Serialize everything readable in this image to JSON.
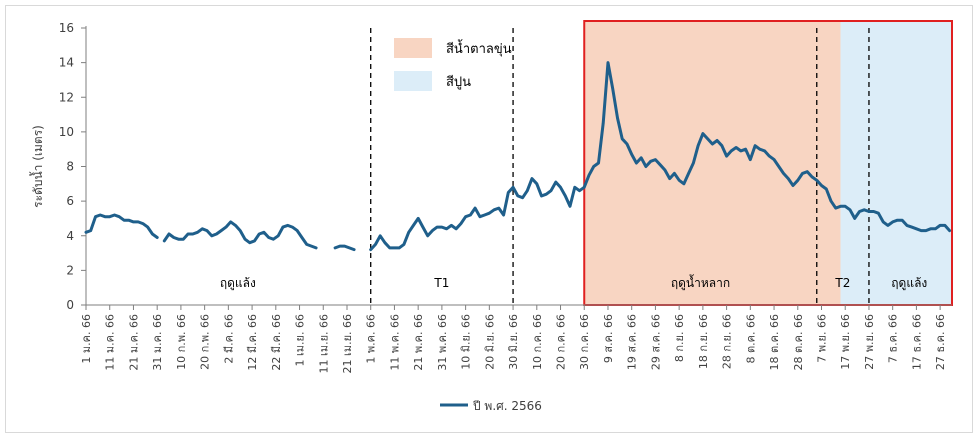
{
  "chart_data": {
    "type": "line",
    "ylabel": "ระดับน้ำ (เมตร)",
    "ylim": [
      0,
      16
    ],
    "yticks": [
      0,
      2,
      4,
      6,
      8,
      10,
      12,
      14,
      16
    ],
    "xlim": [
      "2023-01-01",
      "2024-01-01"
    ],
    "xticks": [
      {
        "date": "2023-01-01",
        "label": "1 ม.ค. 66"
      },
      {
        "date": "2023-01-11",
        "label": "11 ม.ค. 66"
      },
      {
        "date": "2023-01-21",
        "label": "21 ม.ค. 66"
      },
      {
        "date": "2023-01-31",
        "label": "31 ม.ค. 66"
      },
      {
        "date": "2023-02-10",
        "label": "10 ก.พ. 66"
      },
      {
        "date": "2023-02-20",
        "label": "20 ก.พ. 66"
      },
      {
        "date": "2023-03-02",
        "label": "2 มี.ค. 66"
      },
      {
        "date": "2023-03-12",
        "label": "12 มี.ค. 66"
      },
      {
        "date": "2023-03-22",
        "label": "22 มี.ค. 66"
      },
      {
        "date": "2023-04-01",
        "label": "1 เม.ย. 66"
      },
      {
        "date": "2023-04-11",
        "label": "11 เม.ย. 66"
      },
      {
        "date": "2023-04-21",
        "label": "21 เม.ย. 66"
      },
      {
        "date": "2023-05-01",
        "label": "1 พ.ค. 66"
      },
      {
        "date": "2023-05-11",
        "label": "11 พ.ค. 66"
      },
      {
        "date": "2023-05-21",
        "label": "21 พ.ค. 66"
      },
      {
        "date": "2023-05-31",
        "label": "31 พ.ค. 66"
      },
      {
        "date": "2023-06-10",
        "label": "10 มิ.ย. 66"
      },
      {
        "date": "2023-06-20",
        "label": "20 มิ.ย. 66"
      },
      {
        "date": "2023-06-30",
        "label": "30 มิ.ย. 66"
      },
      {
        "date": "2023-07-10",
        "label": "10 ก.ค. 66"
      },
      {
        "date": "2023-07-20",
        "label": "20 ก.ค. 66"
      },
      {
        "date": "2023-07-30",
        "label": "30 ก.ค. 66"
      },
      {
        "date": "2023-08-09",
        "label": "9 ส.ค. 66"
      },
      {
        "date": "2023-08-19",
        "label": "19 ส.ค. 66"
      },
      {
        "date": "2023-08-29",
        "label": "29 ส.ค. 66"
      },
      {
        "date": "2023-09-08",
        "label": "8 ก.ย. 66"
      },
      {
        "date": "2023-09-18",
        "label": "18 ก.ย. 66"
      },
      {
        "date": "2023-09-28",
        "label": "28 ก.ย. 66"
      },
      {
        "date": "2023-10-08",
        "label": "8 ต.ค. 66"
      },
      {
        "date": "2023-10-18",
        "label": "18 ต.ค. 66"
      },
      {
        "date": "2023-10-28",
        "label": "28 ต.ค. 66"
      },
      {
        "date": "2023-11-07",
        "label": "7 พ.ย. 66"
      },
      {
        "date": "2023-11-17",
        "label": "17 พ.ย. 66"
      },
      {
        "date": "2023-11-27",
        "label": "27 พ.ย. 66"
      },
      {
        "date": "2023-12-07",
        "label": "7 ธ.ค. 66"
      },
      {
        "date": "2023-12-17",
        "label": "17 ธ.ค. 66"
      },
      {
        "date": "2023-12-27",
        "label": "27 ธ.ค. 66"
      }
    ],
    "series": [
      {
        "name": "ปี พ.ศ. 2566",
        "color": "#1f5f8b",
        "segments": [
          [
            [
              "2023-01-01",
              4.2
            ],
            [
              "2023-01-03",
              4.3
            ],
            [
              "2023-01-05",
              5.1
            ],
            [
              "2023-01-07",
              5.2
            ],
            [
              "2023-01-09",
              5.1
            ],
            [
              "2023-01-11",
              5.1
            ],
            [
              "2023-01-13",
              5.2
            ],
            [
              "2023-01-15",
              5.1
            ],
            [
              "2023-01-17",
              4.9
            ],
            [
              "2023-01-19",
              4.9
            ],
            [
              "2023-01-21",
              4.8
            ],
            [
              "2023-01-23",
              4.8
            ],
            [
              "2023-01-25",
              4.7
            ],
            [
              "2023-01-27",
              4.5
            ],
            [
              "2023-01-29",
              4.1
            ],
            [
              "2023-01-31",
              3.9
            ]
          ],
          [
            [
              "2023-02-03",
              3.7
            ],
            [
              "2023-02-05",
              4.1
            ],
            [
              "2023-02-07",
              3.9
            ],
            [
              "2023-02-09",
              3.8
            ],
            [
              "2023-02-11",
              3.8
            ],
            [
              "2023-02-13",
              4.1
            ],
            [
              "2023-02-15",
              4.1
            ],
            [
              "2023-02-17",
              4.2
            ],
            [
              "2023-02-19",
              4.4
            ],
            [
              "2023-02-21",
              4.3
            ],
            [
              "2023-02-23",
              4.0
            ],
            [
              "2023-02-25",
              4.1
            ],
            [
              "2023-02-27",
              4.3
            ],
            [
              "2023-03-01",
              4.5
            ],
            [
              "2023-03-03",
              4.8
            ],
            [
              "2023-03-05",
              4.6
            ],
            [
              "2023-03-07",
              4.3
            ],
            [
              "2023-03-09",
              3.8
            ],
            [
              "2023-03-11",
              3.6
            ],
            [
              "2023-03-13",
              3.7
            ],
            [
              "2023-03-15",
              4.1
            ],
            [
              "2023-03-17",
              4.2
            ],
            [
              "2023-03-19",
              3.9
            ],
            [
              "2023-03-21",
              3.8
            ],
            [
              "2023-03-23",
              4.0
            ],
            [
              "2023-03-25",
              4.5
            ],
            [
              "2023-03-27",
              4.6
            ],
            [
              "2023-03-29",
              4.5
            ],
            [
              "2023-03-31",
              4.3
            ],
            [
              "2023-04-02",
              3.9
            ],
            [
              "2023-04-04",
              3.5
            ],
            [
              "2023-04-06",
              3.4
            ],
            [
              "2023-04-08",
              3.3
            ]
          ],
          [
            [
              "2023-04-16",
              3.3
            ],
            [
              "2023-04-18",
              3.4
            ],
            [
              "2023-04-20",
              3.4
            ],
            [
              "2023-04-22",
              3.3
            ],
            [
              "2023-04-24",
              3.2
            ]
          ],
          [
            [
              "2023-05-01",
              3.2
            ],
            [
              "2023-05-03",
              3.5
            ],
            [
              "2023-05-05",
              4.0
            ],
            [
              "2023-05-07",
              3.6
            ],
            [
              "2023-05-09",
              3.3
            ],
            [
              "2023-05-11",
              3.3
            ],
            [
              "2023-05-13",
              3.3
            ],
            [
              "2023-05-15",
              3.5
            ],
            [
              "2023-05-17",
              4.2
            ],
            [
              "2023-05-19",
              4.6
            ],
            [
              "2023-05-21",
              5.0
            ],
            [
              "2023-05-23",
              4.5
            ],
            [
              "2023-05-25",
              4.0
            ],
            [
              "2023-05-27",
              4.3
            ],
            [
              "2023-05-29",
              4.5
            ],
            [
              "2023-05-31",
              4.5
            ],
            [
              "2023-06-02",
              4.4
            ],
            [
              "2023-06-04",
              4.6
            ],
            [
              "2023-06-06",
              4.4
            ],
            [
              "2023-06-08",
              4.7
            ],
            [
              "2023-06-10",
              5.1
            ],
            [
              "2023-06-12",
              5.2
            ],
            [
              "2023-06-14",
              5.6
            ],
            [
              "2023-06-16",
              5.1
            ],
            [
              "2023-06-18",
              5.2
            ],
            [
              "2023-06-20",
              5.3
            ],
            [
              "2023-06-22",
              5.5
            ],
            [
              "2023-06-24",
              5.6
            ],
            [
              "2023-06-26",
              5.2
            ],
            [
              "2023-06-28",
              6.5
            ],
            [
              "2023-06-30",
              6.8
            ],
            [
              "2023-07-02",
              6.3
            ],
            [
              "2023-07-04",
              6.2
            ],
            [
              "2023-07-06",
              6.6
            ],
            [
              "2023-07-08",
              7.3
            ],
            [
              "2023-07-10",
              7.0
            ],
            [
              "2023-07-12",
              6.3
            ],
            [
              "2023-07-14",
              6.4
            ],
            [
              "2023-07-16",
              6.6
            ],
            [
              "2023-07-18",
              7.1
            ],
            [
              "2023-07-20",
              6.8
            ],
            [
              "2023-07-22",
              6.3
            ],
            [
              "2023-07-24",
              5.7
            ],
            [
              "2023-07-26",
              6.8
            ],
            [
              "2023-07-28",
              6.6
            ],
            [
              "2023-07-30",
              6.8
            ],
            [
              "2023-08-01",
              7.5
            ],
            [
              "2023-08-03",
              8.0
            ],
            [
              "2023-08-05",
              8.2
            ],
            [
              "2023-08-07",
              10.5
            ],
            [
              "2023-08-09",
              14.0
            ],
            [
              "2023-08-11",
              12.5
            ],
            [
              "2023-08-13",
              10.8
            ],
            [
              "2023-08-15",
              9.6
            ],
            [
              "2023-08-17",
              9.3
            ],
            [
              "2023-08-19",
              8.7
            ],
            [
              "2023-08-21",
              8.2
            ],
            [
              "2023-08-23",
              8.5
            ],
            [
              "2023-08-25",
              8.0
            ],
            [
              "2023-08-27",
              8.3
            ],
            [
              "2023-08-29",
              8.4
            ],
            [
              "2023-08-31",
              8.1
            ],
            [
              "2023-09-02",
              7.8
            ],
            [
              "2023-09-04",
              7.3
            ],
            [
              "2023-09-06",
              7.6
            ],
            [
              "2023-09-08",
              7.2
            ],
            [
              "2023-09-10",
              7.0
            ],
            [
              "2023-09-12",
              7.6
            ],
            [
              "2023-09-14",
              8.2
            ],
            [
              "2023-09-16",
              9.2
            ],
            [
              "2023-09-18",
              9.9
            ],
            [
              "2023-09-20",
              9.6
            ],
            [
              "2023-09-22",
              9.3
            ],
            [
              "2023-09-24",
              9.5
            ],
            [
              "2023-09-26",
              9.2
            ],
            [
              "2023-09-28",
              8.6
            ],
            [
              "2023-09-30",
              8.9
            ],
            [
              "2023-10-02",
              9.1
            ],
            [
              "2023-10-04",
              8.9
            ],
            [
              "2023-10-06",
              9.0
            ],
            [
              "2023-10-08",
              8.4
            ],
            [
              "2023-10-10",
              9.2
            ],
            [
              "2023-10-12",
              9.0
            ],
            [
              "2023-10-14",
              8.9
            ],
            [
              "2023-10-16",
              8.6
            ],
            [
              "2023-10-18",
              8.4
            ],
            [
              "2023-10-20",
              8.0
            ],
            [
              "2023-10-22",
              7.6
            ],
            [
              "2023-10-24",
              7.3
            ],
            [
              "2023-10-26",
              6.9
            ],
            [
              "2023-10-28",
              7.2
            ],
            [
              "2023-10-30",
              7.6
            ],
            [
              "2023-11-01",
              7.7
            ],
            [
              "2023-11-03",
              7.4
            ],
            [
              "2023-11-05",
              7.2
            ],
            [
              "2023-11-07",
              6.9
            ],
            [
              "2023-11-09",
              6.7
            ],
            [
              "2023-11-11",
              6.0
            ],
            [
              "2023-11-13",
              5.6
            ],
            [
              "2023-11-15",
              5.7
            ],
            [
              "2023-11-17",
              5.7
            ],
            [
              "2023-11-19",
              5.5
            ],
            [
              "2023-11-21",
              5.0
            ],
            [
              "2023-11-23",
              5.4
            ],
            [
              "2023-11-25",
              5.5
            ],
            [
              "2023-11-27",
              5.4
            ],
            [
              "2023-11-29",
              5.4
            ],
            [
              "2023-12-01",
              5.3
            ],
            [
              "2023-12-03",
              4.8
            ],
            [
              "2023-12-05",
              4.6
            ],
            [
              "2023-12-07",
              4.8
            ],
            [
              "2023-12-09",
              4.9
            ],
            [
              "2023-12-11",
              4.9
            ],
            [
              "2023-12-13",
              4.6
            ],
            [
              "2023-12-15",
              4.5
            ],
            [
              "2023-12-17",
              4.4
            ],
            [
              "2023-12-19",
              4.3
            ],
            [
              "2023-12-21",
              4.3
            ],
            [
              "2023-12-23",
              4.4
            ],
            [
              "2023-12-25",
              4.4
            ],
            [
              "2023-12-27",
              4.6
            ],
            [
              "2023-12-29",
              4.6
            ],
            [
              "2023-12-31",
              4.3
            ]
          ]
        ]
      }
    ],
    "shaded_regions": [
      {
        "start": "2023-07-30",
        "end": "2023-11-15",
        "color": "#f8d5c2",
        "legend": "สีน้ำตาลขุ่น"
      },
      {
        "start": "2023-11-15",
        "end": "2024-01-01",
        "color": "#dcedf8",
        "legend": "สีปูน"
      }
    ],
    "highlight_box": {
      "start": "2023-07-30",
      "end": "2024-01-01",
      "color": "#e02020"
    },
    "dashed_lines": [
      "2023-05-01",
      "2023-06-30",
      "2023-11-05",
      "2023-11-27"
    ],
    "period_labels": [
      {
        "text": "ฤดูแล้ง",
        "center": "2023-03-06"
      },
      {
        "text": "T1",
        "center": "2023-05-31"
      },
      {
        "text": "ฤดูน้ำหลาก",
        "center": "2023-09-17"
      },
      {
        "text": "T2",
        "center": "2023-11-16"
      },
      {
        "text": "ฤดูแล้ง",
        "center": "2023-12-14"
      }
    ],
    "legend": {
      "position": "bottom-center"
    },
    "grid": false
  }
}
